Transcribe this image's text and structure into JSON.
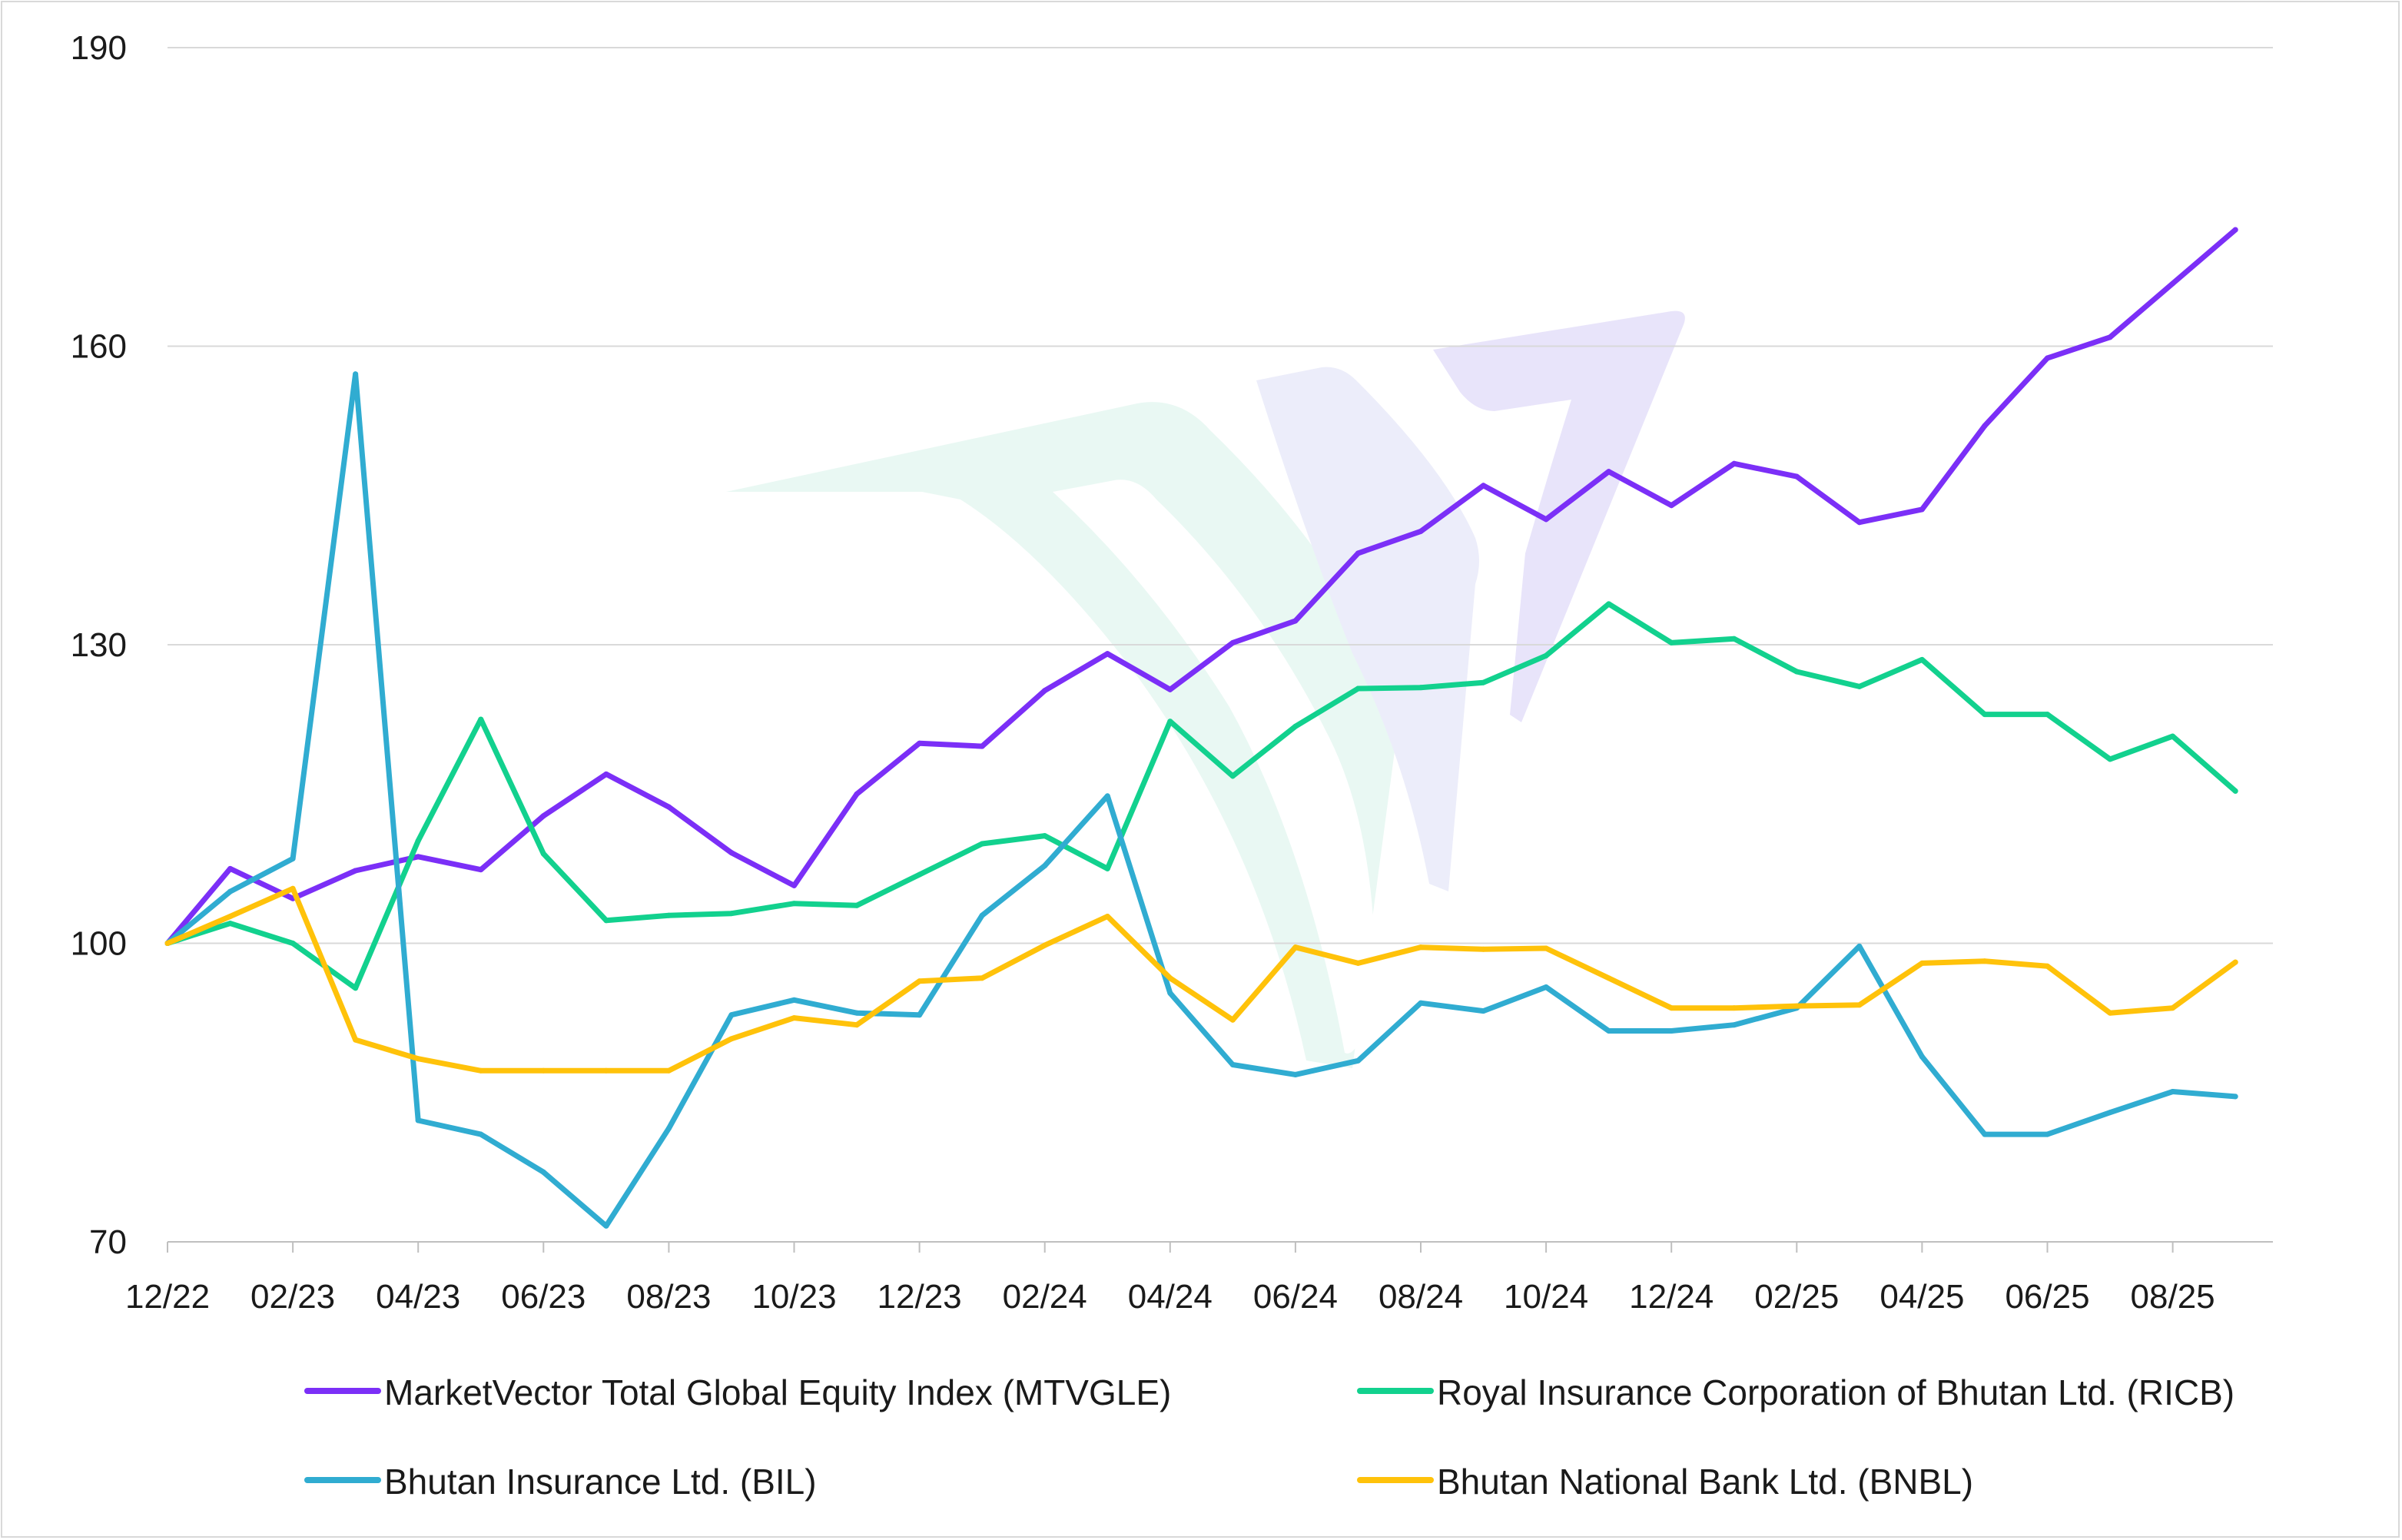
{
  "chart_data": {
    "type": "line",
    "title": "",
    "xlabel": "",
    "ylabel": "",
    "ylim": [
      70,
      190
    ],
    "yticks": [
      70,
      100,
      130,
      160,
      190
    ],
    "grid": true,
    "legend_position": "bottom",
    "x": [
      "12/22",
      "01/23",
      "02/23",
      "03/23",
      "04/23",
      "05/23",
      "06/23",
      "07/23",
      "08/23",
      "09/23",
      "10/23",
      "11/23",
      "12/23",
      "01/24",
      "02/24",
      "03/24",
      "04/24",
      "05/24",
      "06/24",
      "07/24",
      "08/24",
      "09/24",
      "10/24",
      "11/24",
      "12/24",
      "01/25",
      "02/25",
      "03/25",
      "04/25",
      "05/25",
      "06/25",
      "07/25",
      "08/25",
      "09/25"
    ],
    "xtick_labels": [
      "12/22",
      "02/23",
      "04/23",
      "06/23",
      "08/23",
      "10/23",
      "12/23",
      "02/24",
      "04/24",
      "06/24",
      "08/24",
      "10/24",
      "12/24",
      "02/25",
      "04/25",
      "06/25",
      "08/25"
    ],
    "series": [
      {
        "name": "MarketVector Total Global Equity Index (MTVGLE)",
        "color": "#7b2ff7",
        "values": [
          100,
          107.5,
          104.5,
          107.3,
          108.7,
          107.4,
          112.8,
          117,
          113.7,
          109.1,
          105.8,
          115,
          120.1,
          119.8,
          125.4,
          129.1,
          125.5,
          130.2,
          132.4,
          139.2,
          141.4,
          146,
          142.6,
          147.4,
          144,
          148.2,
          146.9,
          142.3,
          143.6,
          152,
          158.8,
          160.9,
          166.3,
          171.7
        ]
      },
      {
        "name": "Royal Insurance Corporation of Bhutan Ltd. (RICB)",
        "color": "#12d18e",
        "values": [
          100,
          102,
          100,
          95.5,
          110.3,
          122.5,
          109,
          102.3,
          102.8,
          103,
          104,
          103.8,
          106.9,
          110,
          110.8,
          107.5,
          122.3,
          116.8,
          121.8,
          125.6,
          125.7,
          126.2,
          128.9,
          134.1,
          130.2,
          130.6,
          127.3,
          125.8,
          128.5,
          123,
          123,
          118.5,
          120.8,
          115.3
        ]
      },
      {
        "name": "Bhutan Insurance Ltd. (BIL)",
        "color": "#30acd1",
        "values": [
          100,
          105.2,
          108.5,
          157.2,
          82.2,
          80.8,
          77,
          71.6,
          81.4,
          92.8,
          94.3,
          93,
          92.8,
          102.8,
          107.8,
          114.8,
          95,
          87.8,
          86.8,
          88.2,
          94,
          93.2,
          95.6,
          91.2,
          91.2,
          91.8,
          93.5,
          99.7,
          88.6,
          80.8,
          80.8,
          83,
          85.1,
          84.6
        ]
      },
      {
        "name": "Bhutan National Bank Ltd. (BNBL)",
        "color": "#ffc20a",
        "values": [
          100,
          102.7,
          105.5,
          90.3,
          88.4,
          87.2,
          87.2,
          87.2,
          87.2,
          90.4,
          92.5,
          91.8,
          96.2,
          96.5,
          99.8,
          102.7,
          96.5,
          92.3,
          99.6,
          98,
          99.6,
          99.4,
          99.5,
          96.5,
          93.5,
          93.5,
          93.7,
          93.8,
          98,
          98.2,
          97.7,
          93,
          93.5,
          98.1
        ]
      }
    ]
  }
}
